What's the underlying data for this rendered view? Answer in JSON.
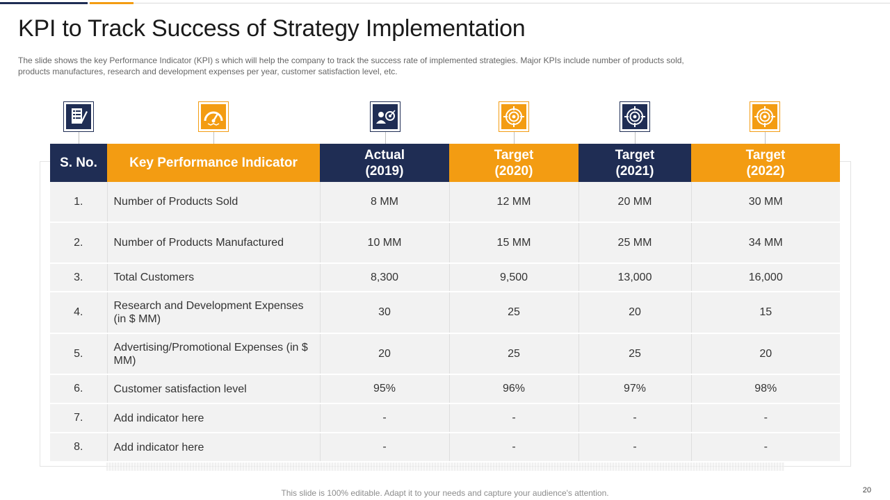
{
  "slide": {
    "title": "KPI to Track Success of Strategy Implementation",
    "description": "The slide shows the key Performance Indicator (KPI) s which will help the company to track the success rate of implemented strategies. Major KPIs include number of products sold, products manufactures, research and development  expenses per year, customer satisfaction level, etc.",
    "footer": "This slide is 100% editable. Adapt it to your needs and capture your audience's attention.",
    "page_number": "20"
  },
  "colors": {
    "navy": "#1f2d54",
    "orange": "#f39c12",
    "row_bg": "#f2f2f2"
  },
  "icons": [
    "checklist-icon",
    "speedometer-icon",
    "person-target-icon",
    "target-icon",
    "crosshair-target-icon",
    "target-icon"
  ],
  "table": {
    "headers": {
      "sno": "S. No.",
      "kpi": "Key Performance Indicator",
      "actual_2019": {
        "l1": "Actual",
        "l2": "(2019)"
      },
      "target_2020": {
        "l1": "Target",
        "l2": "(2020)"
      },
      "target_2021": {
        "l1": "Target",
        "l2": "(2021)"
      },
      "target_2022": {
        "l1": "Target",
        "l2": "(2022)"
      }
    },
    "rows": [
      {
        "sno": "1.",
        "kpi": "Number of Products Sold",
        "actual_2019": "8 MM",
        "target_2020": "12 MM",
        "target_2021": "20 MM",
        "target_2022": "30 MM"
      },
      {
        "sno": "2.",
        "kpi": "Number of Products Manufactured",
        "actual_2019": "10 MM",
        "target_2020": "15 MM",
        "target_2021": "25 MM",
        "target_2022": "34 MM"
      },
      {
        "sno": "3.",
        "kpi": "Total Customers",
        "actual_2019": "8,300",
        "target_2020": "9,500",
        "target_2021": "13,000",
        "target_2022": "16,000"
      },
      {
        "sno": "4.",
        "kpi": "Research and Development Expenses (in $ MM)",
        "actual_2019": "30",
        "target_2020": "25",
        "target_2021": "20",
        "target_2022": "15"
      },
      {
        "sno": "5.",
        "kpi": "Advertising/Promotional Expenses (in $ MM)",
        "actual_2019": "20",
        "target_2020": "25",
        "target_2021": "25",
        "target_2022": "20"
      },
      {
        "sno": "6.",
        "kpi": "Customer satisfaction level",
        "actual_2019": "95%",
        "target_2020": "96%",
        "target_2021": "97%",
        "target_2022": "98%"
      },
      {
        "sno": "7.",
        "kpi": "Add indicator here",
        "actual_2019": "-",
        "target_2020": "-",
        "target_2021": "-",
        "target_2022": "-"
      },
      {
        "sno": "8.",
        "kpi": "Add indicator here",
        "actual_2019": "-",
        "target_2020": "-",
        "target_2021": "-",
        "target_2022": "-"
      }
    ]
  }
}
